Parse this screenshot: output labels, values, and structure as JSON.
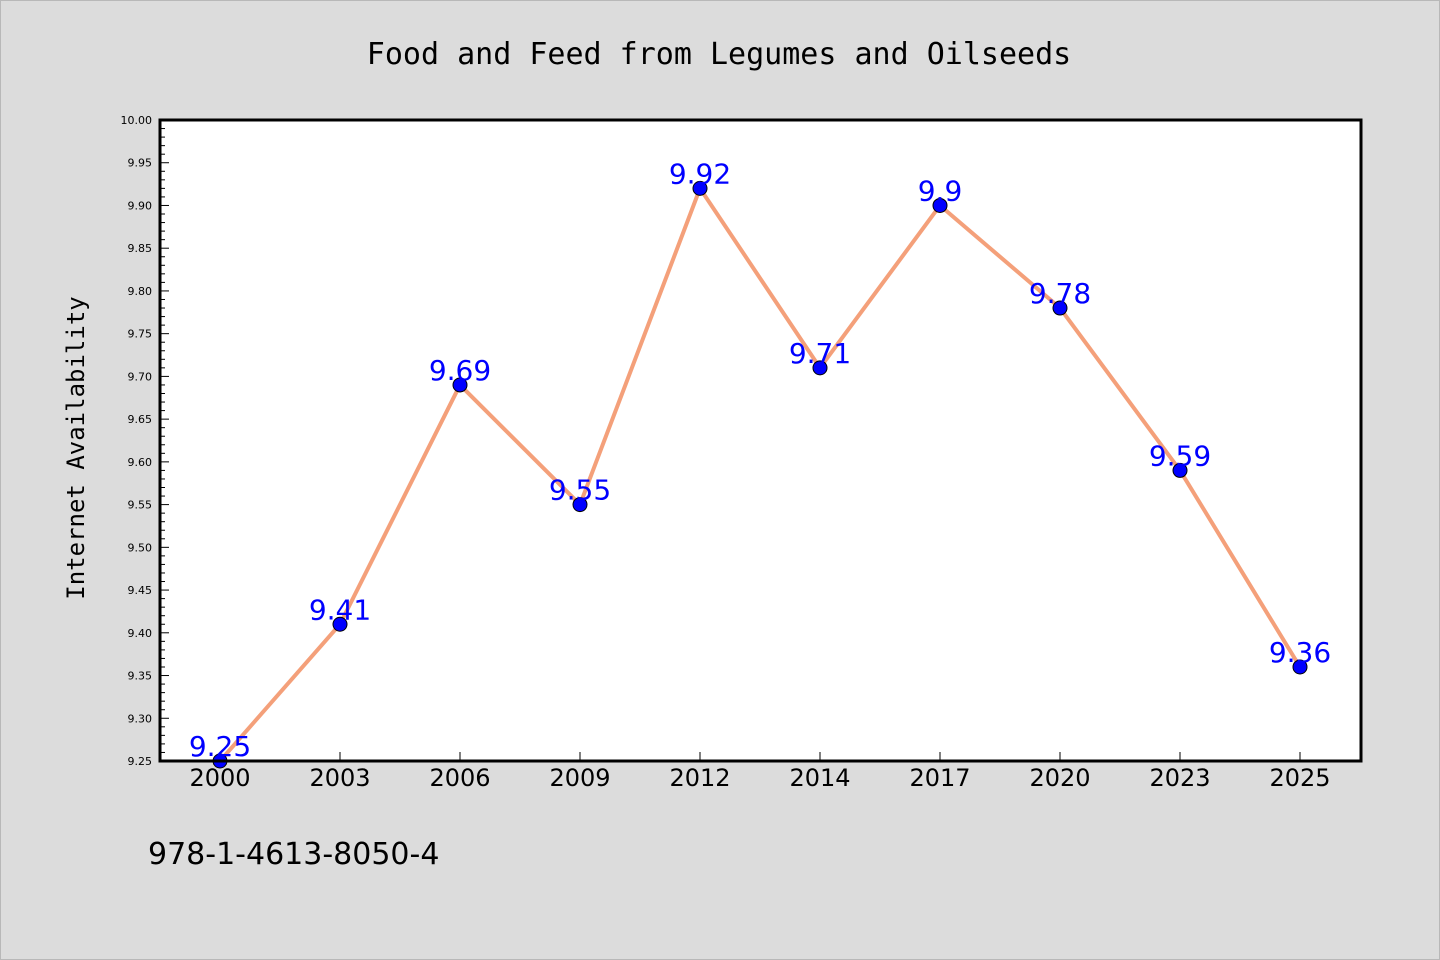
{
  "chart_data": {
    "type": "line",
    "title": "Food and Feed from Legumes and Oilseeds",
    "xlabel": "",
    "ylabel": "Internet Availability",
    "categories": [
      "2000",
      "2003",
      "2006",
      "2009",
      "2012",
      "2014",
      "2017",
      "2020",
      "2023",
      "2025"
    ],
    "series": [
      {
        "values": [
          9.25,
          9.41,
          9.69,
          9.55,
          9.92,
          9.71,
          9.9,
          9.78,
          9.59,
          9.36
        ],
        "data_labels": [
          "9.25",
          "9.41",
          "9.69",
          "9.55",
          "9.92",
          "9.71",
          "9.9",
          "9.78",
          "9.59",
          "9.36"
        ],
        "line_color": "#f4a07a",
        "marker_color": "#0000ff"
      }
    ],
    "yticks": [
      "9.25",
      "9.30",
      "9.35",
      "9.40",
      "9.45",
      "9.50",
      "9.55",
      "9.60",
      "9.65",
      "9.70",
      "9.75",
      "9.80",
      "9.85",
      "9.90",
      "9.95",
      "10.00"
    ],
    "ylim": [
      9.25,
      10.0
    ],
    "grid": false,
    "legend": "none"
  },
  "footer": {
    "isbn": "978-1-4613-8050-4"
  },
  "colors": {
    "background": "#dcdcdc",
    "plot_area": "#ffffff",
    "label_color": "#0000ff"
  }
}
